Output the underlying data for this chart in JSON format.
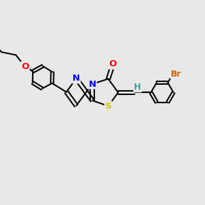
{
  "bg_color": "#e8e8e8",
  "bond_color": "#000000",
  "atom_colors": {
    "S": "#cccc00",
    "N": "#0000ff",
    "O": "#ff0000",
    "Br": "#cc6600",
    "C": "#000000",
    "H": "#40a0a0"
  },
  "lw": 1.5,
  "dbo": 0.09,
  "fs": 9.5
}
